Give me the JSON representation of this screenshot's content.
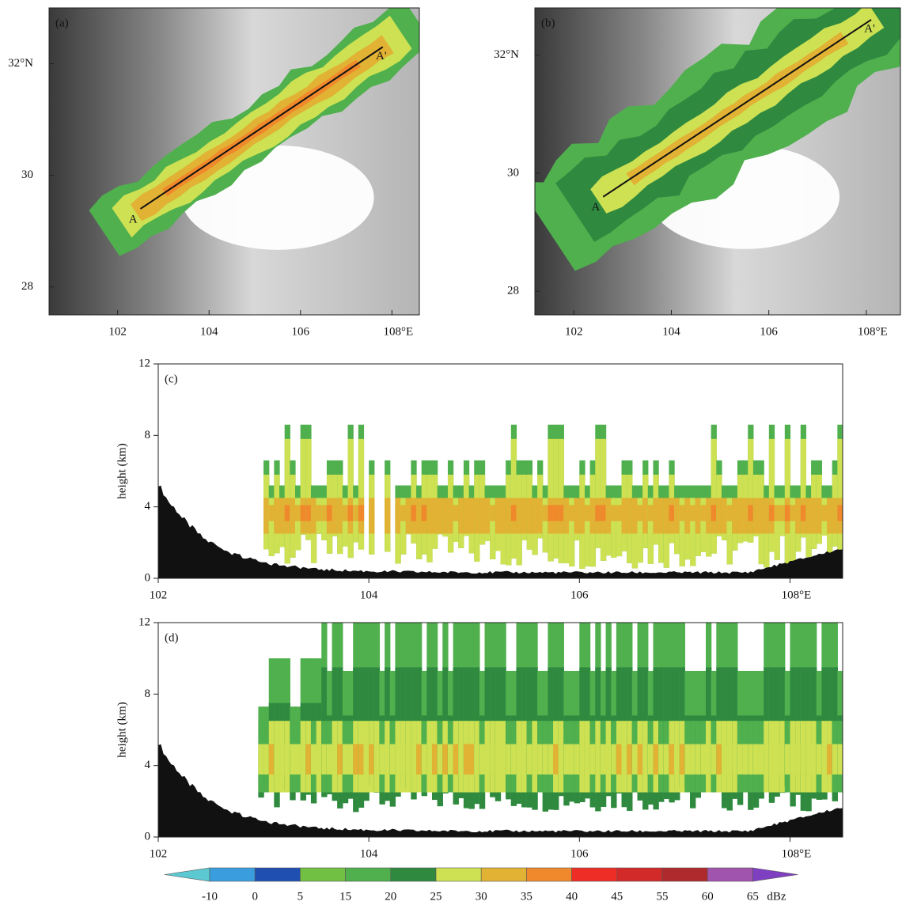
{
  "chart_data": [
    {
      "type": "map",
      "panel_label": "(a)",
      "xlim": [
        100.5,
        108.6
      ],
      "ylim": [
        27.5,
        33
      ],
      "xticks": [
        102,
        104,
        106,
        {
          "value": 108,
          "label": "108°E"
        }
      ],
      "yticks": [
        28,
        30,
        {
          "value": 32,
          "label": "32°N"
        }
      ],
      "section": {
        "lon": [
          102.5,
          107.8
        ],
        "lat": [
          29.4,
          32.3
        ],
        "labels": [
          "A",
          "A'"
        ]
      }
    },
    {
      "type": "map",
      "panel_label": "(b)",
      "xlim": [
        101.2,
        108.7
      ],
      "ylim": [
        27.6,
        32.8
      ],
      "xticks": [
        102,
        104,
        106,
        {
          "value": 108,
          "label": "108°E"
        }
      ],
      "yticks": [
        28,
        30,
        {
          "value": 32,
          "label": "32°N"
        }
      ],
      "section": {
        "lon": [
          102.6,
          108.1
        ],
        "lat": [
          29.6,
          32.6
        ],
        "labels": [
          "A",
          "A'"
        ]
      }
    },
    {
      "type": "section",
      "panel_label": "(c)",
      "ylabel": "height (km)",
      "xlim": [
        102,
        108.5
      ],
      "ylim": [
        0,
        12
      ],
      "xticks": [
        102,
        104,
        106,
        {
          "value": 108,
          "label": "108°E"
        }
      ],
      "yticks": [
        0,
        4,
        8,
        12
      ]
    },
    {
      "type": "section",
      "panel_label": "(d)",
      "ylabel": "height (km)",
      "xlim": [
        102,
        108.5
      ],
      "ylim": [
        0,
        12
      ],
      "xticks": [
        102,
        104,
        106,
        {
          "value": 108,
          "label": "108°E"
        }
      ],
      "yticks": [
        0,
        4,
        8,
        12
      ]
    },
    {
      "type": "colorbar",
      "unit": "dBz",
      "levels": [
        -10,
        0,
        5,
        15,
        20,
        25,
        30,
        35,
        40,
        45,
        55,
        60,
        65
      ],
      "colors": [
        "#5cc8d2",
        "#3a9ede",
        "#1f4fb0",
        "#72c043",
        "#4fb04d",
        "#2f8a40",
        "#cde153",
        "#e1b233",
        "#f0892b",
        "#ee2e26",
        "#d12a29",
        "#af2a2c",
        "#a154ad",
        "#7e3fc0"
      ]
    }
  ]
}
